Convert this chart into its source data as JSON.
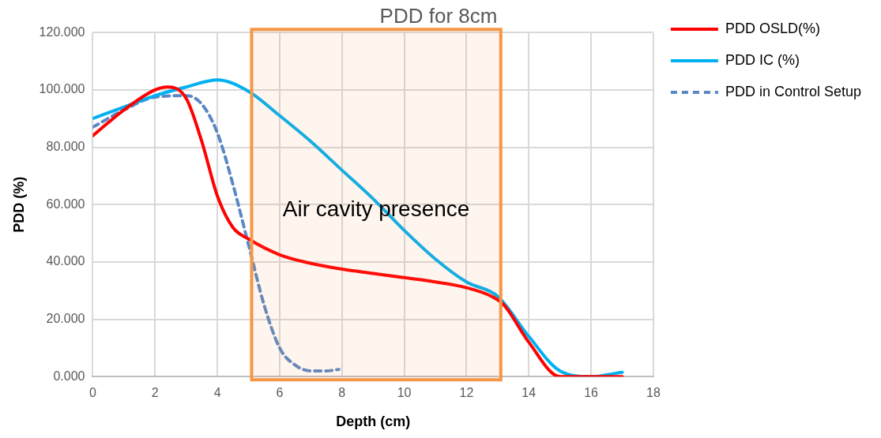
{
  "chart_data": {
    "type": "line",
    "title": "PDD for 8cm",
    "xlabel": "Depth (cm)",
    "ylabel": "PDD (%)",
    "xlim": [
      0,
      18
    ],
    "xticks": [
      0,
      2,
      4,
      6,
      8,
      10,
      12,
      14,
      16,
      18
    ],
    "ylim": [
      0,
      120
    ],
    "yticks": [
      {
        "value": 0,
        "label": "0.000"
      },
      {
        "value": 20,
        "label": "20.000"
      },
      {
        "value": 40,
        "label": "40.000"
      },
      {
        "value": 60,
        "label": "60.000"
      },
      {
        "value": 80,
        "label": "80.000"
      },
      {
        "value": 100,
        "label": "100.000"
      },
      {
        "value": 120,
        "label": "120.000"
      }
    ],
    "grid": true,
    "legend": "right",
    "marker": "none",
    "series": [
      {
        "name": "PDD OSLD(%)",
        "color": "#ff0000",
        "x": [
          0,
          1,
          2,
          2.4,
          3,
          3.5,
          4,
          4.5,
          5,
          6,
          7,
          8,
          9,
          10,
          11,
          12,
          12.8,
          13.2,
          14,
          15,
          16,
          17
        ],
        "values": [
          84,
          93,
          100,
          101,
          97,
          82,
          63,
          52,
          48,
          42.5,
          39.5,
          37.5,
          36,
          34.5,
          33,
          31,
          28,
          25,
          12,
          0,
          0,
          0
        ]
      },
      {
        "name": "PDD IC (%)",
        "color": "#00b0f0",
        "x": [
          0,
          1,
          2,
          3,
          4,
          5,
          6,
          7,
          8,
          9,
          10,
          11,
          12,
          13,
          14,
          15,
          16,
          17
        ],
        "values": [
          90,
          94,
          98,
          101,
          103.5,
          99.5,
          91,
          82,
          72,
          62,
          51,
          41,
          33,
          28,
          14,
          2,
          0,
          1.5
        ]
      },
      {
        "name": "PDD in Control Setup",
        "color": "#5b88c4",
        "line_style": "dashed",
        "x": [
          0,
          1,
          2,
          3,
          3.5,
          4,
          4.5,
          5,
          5.5,
          6,
          6.5,
          7,
          7.5,
          7.9
        ],
        "values": [
          87,
          93,
          97.5,
          98,
          95,
          85,
          67,
          46,
          25,
          10,
          4,
          2,
          2,
          2.5
        ]
      }
    ],
    "bands": [
      {
        "axis": "x",
        "from": 5.1,
        "to": 13.1,
        "label": "Air cavity presence",
        "color": "#f79646"
      }
    ]
  }
}
